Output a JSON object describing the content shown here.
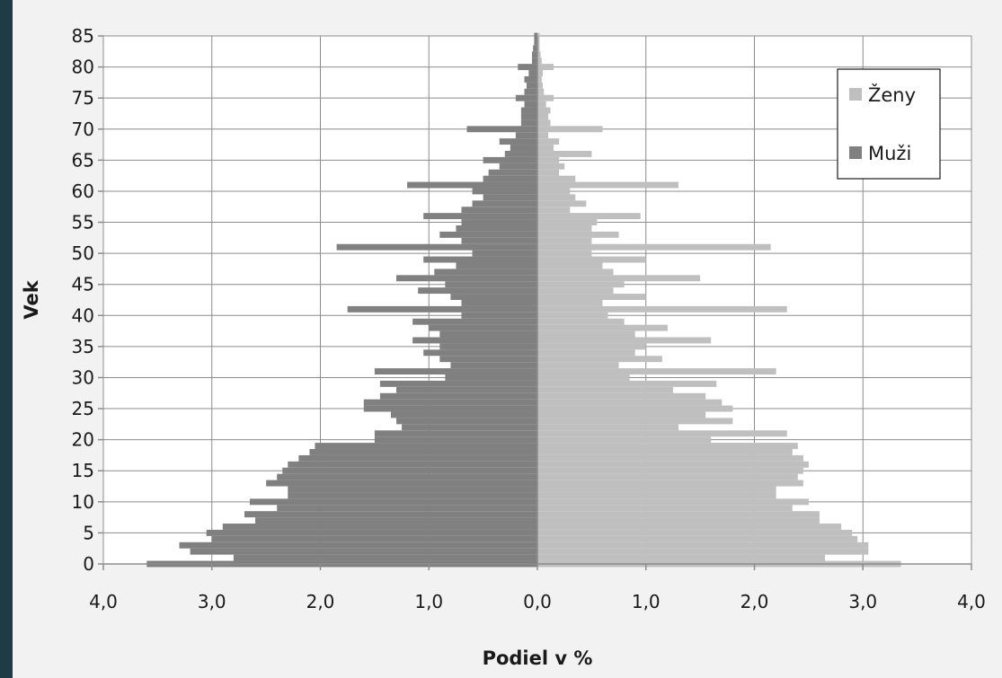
{
  "chart_data": {
    "type": "bar",
    "orientation": "horizontal",
    "xlabel": "Podiel v %",
    "ylabel": "Vek",
    "xlim": [
      -4.0,
      4.0
    ],
    "ylim": [
      0,
      85
    ],
    "x_ticks": [
      "4,0",
      "3,0",
      "2,0",
      "1,0",
      "0,0",
      "1,0",
      "2,0",
      "3,0",
      "4,0"
    ],
    "y_ticks": [
      "0",
      "5",
      "10",
      "15",
      "20",
      "25",
      "30",
      "35",
      "40",
      "45",
      "50",
      "55",
      "60",
      "65",
      "70",
      "75",
      "80",
      "85"
    ],
    "grid": true,
    "legend_position": "top-right",
    "legend_order": [
      "Ženy",
      "Muži"
    ],
    "ages": [
      0,
      1,
      2,
      3,
      4,
      5,
      6,
      7,
      8,
      9,
      10,
      11,
      12,
      13,
      14,
      15,
      16,
      17,
      18,
      19,
      20,
      21,
      22,
      23,
      24,
      25,
      26,
      27,
      28,
      29,
      30,
      31,
      32,
      33,
      34,
      35,
      36,
      37,
      38,
      39,
      40,
      41,
      42,
      43,
      44,
      45,
      46,
      47,
      48,
      49,
      50,
      51,
      52,
      53,
      54,
      55,
      56,
      57,
      58,
      59,
      60,
      61,
      62,
      63,
      64,
      65,
      66,
      67,
      68,
      69,
      70,
      71,
      72,
      73,
      74,
      75,
      76,
      77,
      78,
      79,
      80,
      81,
      82,
      83,
      84,
      85
    ],
    "series": [
      {
        "name": "Muži",
        "color": "#808080",
        "values": [
          3.6,
          2.8,
          3.2,
          3.3,
          3.0,
          3.05,
          2.9,
          2.6,
          2.7,
          2.4,
          2.65,
          2.3,
          2.3,
          2.5,
          2.4,
          2.35,
          2.3,
          2.2,
          2.1,
          2.05,
          1.5,
          1.5,
          1.25,
          1.3,
          1.35,
          1.6,
          1.6,
          1.45,
          1.3,
          1.45,
          0.85,
          1.5,
          0.8,
          0.9,
          1.05,
          0.9,
          1.15,
          0.9,
          1.0,
          1.15,
          0.7,
          1.75,
          0.7,
          0.8,
          1.1,
          0.85,
          1.3,
          0.95,
          0.75,
          1.05,
          0.6,
          1.85,
          0.7,
          0.9,
          0.75,
          0.7,
          1.05,
          0.7,
          0.6,
          0.5,
          0.6,
          1.2,
          0.5,
          0.45,
          0.35,
          0.5,
          0.3,
          0.25,
          0.35,
          0.2,
          0.65,
          0.15,
          0.15,
          0.15,
          0.12,
          0.2,
          0.12,
          0.1,
          0.12,
          0.08,
          0.18,
          0.05,
          0.05,
          0.04,
          0.03,
          0.03
        ]
      },
      {
        "name": "Ženy",
        "color": "#bfbfbf",
        "values": [
          3.35,
          2.65,
          3.05,
          3.05,
          2.95,
          2.9,
          2.8,
          2.6,
          2.6,
          2.35,
          2.5,
          2.2,
          2.2,
          2.45,
          2.4,
          2.45,
          2.5,
          2.45,
          2.35,
          2.4,
          1.6,
          2.3,
          1.3,
          1.8,
          1.55,
          1.8,
          1.7,
          1.55,
          1.25,
          1.65,
          0.85,
          2.2,
          0.75,
          1.15,
          0.9,
          1.0,
          1.6,
          0.9,
          1.2,
          0.8,
          0.65,
          2.3,
          0.6,
          1.0,
          0.7,
          0.8,
          1.5,
          0.7,
          0.6,
          1.0,
          0.5,
          2.15,
          0.5,
          0.75,
          0.5,
          0.55,
          0.95,
          0.3,
          0.45,
          0.35,
          0.3,
          1.3,
          0.35,
          0.2,
          0.25,
          0.2,
          0.5,
          0.15,
          0.2,
          0.1,
          0.6,
          0.12,
          0.1,
          0.12,
          0.08,
          0.15,
          0.06,
          0.05,
          0.04,
          0.05,
          0.15,
          0.04,
          0.03,
          0.02,
          0.02,
          0.02
        ]
      }
    ]
  }
}
